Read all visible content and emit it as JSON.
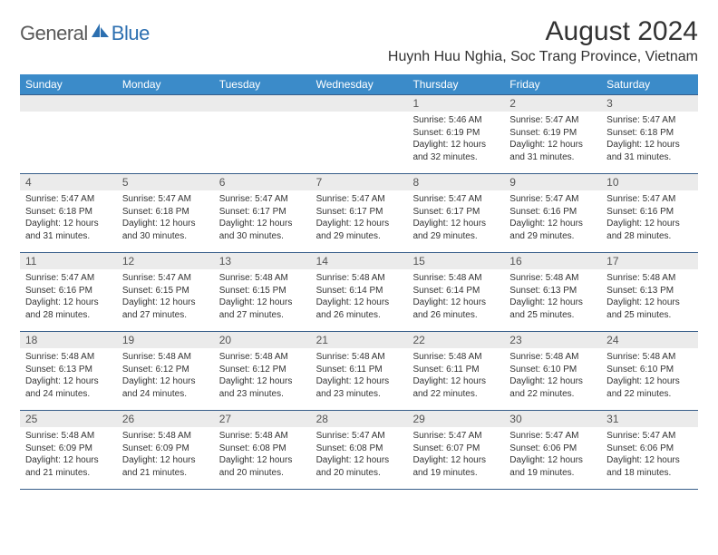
{
  "brand": {
    "part1": "General",
    "part2": "Blue"
  },
  "title": "August 2024",
  "location": "Huynh Huu Nghia, Soc Trang Province, Vietnam",
  "colors": {
    "header_bg": "#3b8bc9",
    "border": "#375e8a",
    "daynum_bg": "#ebebeb",
    "text": "#333333",
    "brand_gray": "#5a5a5a",
    "brand_blue": "#2c6fb0"
  },
  "dayNames": [
    "Sunday",
    "Monday",
    "Tuesday",
    "Wednesday",
    "Thursday",
    "Friday",
    "Saturday"
  ],
  "weeks": [
    [
      {
        "n": "",
        "sr": "",
        "ss": "",
        "dl": ""
      },
      {
        "n": "",
        "sr": "",
        "ss": "",
        "dl": ""
      },
      {
        "n": "",
        "sr": "",
        "ss": "",
        "dl": ""
      },
      {
        "n": "",
        "sr": "",
        "ss": "",
        "dl": ""
      },
      {
        "n": "1",
        "sr": "5:46 AM",
        "ss": "6:19 PM",
        "dl": "12 hours and 32 minutes."
      },
      {
        "n": "2",
        "sr": "5:47 AM",
        "ss": "6:19 PM",
        "dl": "12 hours and 31 minutes."
      },
      {
        "n": "3",
        "sr": "5:47 AM",
        "ss": "6:18 PM",
        "dl": "12 hours and 31 minutes."
      }
    ],
    [
      {
        "n": "4",
        "sr": "5:47 AM",
        "ss": "6:18 PM",
        "dl": "12 hours and 31 minutes."
      },
      {
        "n": "5",
        "sr": "5:47 AM",
        "ss": "6:18 PM",
        "dl": "12 hours and 30 minutes."
      },
      {
        "n": "6",
        "sr": "5:47 AM",
        "ss": "6:17 PM",
        "dl": "12 hours and 30 minutes."
      },
      {
        "n": "7",
        "sr": "5:47 AM",
        "ss": "6:17 PM",
        "dl": "12 hours and 29 minutes."
      },
      {
        "n": "8",
        "sr": "5:47 AM",
        "ss": "6:17 PM",
        "dl": "12 hours and 29 minutes."
      },
      {
        "n": "9",
        "sr": "5:47 AM",
        "ss": "6:16 PM",
        "dl": "12 hours and 29 minutes."
      },
      {
        "n": "10",
        "sr": "5:47 AM",
        "ss": "6:16 PM",
        "dl": "12 hours and 28 minutes."
      }
    ],
    [
      {
        "n": "11",
        "sr": "5:47 AM",
        "ss": "6:16 PM",
        "dl": "12 hours and 28 minutes."
      },
      {
        "n": "12",
        "sr": "5:47 AM",
        "ss": "6:15 PM",
        "dl": "12 hours and 27 minutes."
      },
      {
        "n": "13",
        "sr": "5:48 AM",
        "ss": "6:15 PM",
        "dl": "12 hours and 27 minutes."
      },
      {
        "n": "14",
        "sr": "5:48 AM",
        "ss": "6:14 PM",
        "dl": "12 hours and 26 minutes."
      },
      {
        "n": "15",
        "sr": "5:48 AM",
        "ss": "6:14 PM",
        "dl": "12 hours and 26 minutes."
      },
      {
        "n": "16",
        "sr": "5:48 AM",
        "ss": "6:13 PM",
        "dl": "12 hours and 25 minutes."
      },
      {
        "n": "17",
        "sr": "5:48 AM",
        "ss": "6:13 PM",
        "dl": "12 hours and 25 minutes."
      }
    ],
    [
      {
        "n": "18",
        "sr": "5:48 AM",
        "ss": "6:13 PM",
        "dl": "12 hours and 24 minutes."
      },
      {
        "n": "19",
        "sr": "5:48 AM",
        "ss": "6:12 PM",
        "dl": "12 hours and 24 minutes."
      },
      {
        "n": "20",
        "sr": "5:48 AM",
        "ss": "6:12 PM",
        "dl": "12 hours and 23 minutes."
      },
      {
        "n": "21",
        "sr": "5:48 AM",
        "ss": "6:11 PM",
        "dl": "12 hours and 23 minutes."
      },
      {
        "n": "22",
        "sr": "5:48 AM",
        "ss": "6:11 PM",
        "dl": "12 hours and 22 minutes."
      },
      {
        "n": "23",
        "sr": "5:48 AM",
        "ss": "6:10 PM",
        "dl": "12 hours and 22 minutes."
      },
      {
        "n": "24",
        "sr": "5:48 AM",
        "ss": "6:10 PM",
        "dl": "12 hours and 22 minutes."
      }
    ],
    [
      {
        "n": "25",
        "sr": "5:48 AM",
        "ss": "6:09 PM",
        "dl": "12 hours and 21 minutes."
      },
      {
        "n": "26",
        "sr": "5:48 AM",
        "ss": "6:09 PM",
        "dl": "12 hours and 21 minutes."
      },
      {
        "n": "27",
        "sr": "5:48 AM",
        "ss": "6:08 PM",
        "dl": "12 hours and 20 minutes."
      },
      {
        "n": "28",
        "sr": "5:47 AM",
        "ss": "6:08 PM",
        "dl": "12 hours and 20 minutes."
      },
      {
        "n": "29",
        "sr": "5:47 AM",
        "ss": "6:07 PM",
        "dl": "12 hours and 19 minutes."
      },
      {
        "n": "30",
        "sr": "5:47 AM",
        "ss": "6:06 PM",
        "dl": "12 hours and 19 minutes."
      },
      {
        "n": "31",
        "sr": "5:47 AM",
        "ss": "6:06 PM",
        "dl": "12 hours and 18 minutes."
      }
    ]
  ],
  "labels": {
    "sunrise": "Sunrise:",
    "sunset": "Sunset:",
    "daylight": "Daylight:"
  }
}
